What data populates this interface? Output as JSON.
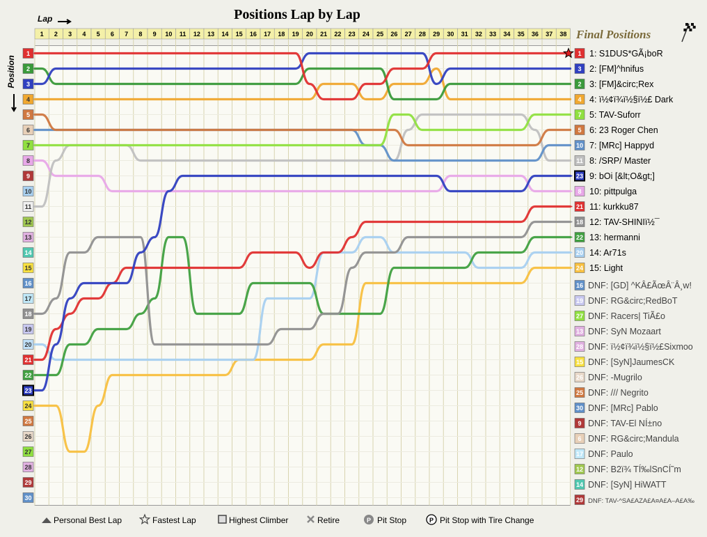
{
  "chart_data": {
    "type": "line",
    "title": "Positions Lap by Lap",
    "x_axis_label": "Lap",
    "y_axis_label": "Position",
    "laps": [
      1,
      2,
      3,
      4,
      5,
      6,
      7,
      8,
      9,
      10,
      11,
      12,
      13,
      14,
      15,
      16,
      17,
      18,
      19,
      20,
      21,
      22,
      23,
      24,
      25,
      26,
      27,
      28,
      29,
      30,
      31,
      32,
      33,
      34,
      35,
      36,
      37,
      38
    ],
    "positions": [
      1,
      2,
      3,
      4,
      5,
      6,
      7,
      8,
      9,
      10,
      11,
      12,
      13,
      14,
      15,
      16,
      17,
      18,
      19,
      20,
      21,
      22,
      23,
      24,
      25,
      26,
      27,
      28,
      29,
      30
    ],
    "grid_colors": [
      "#e03030",
      "#3a9a3a",
      "#3040c0",
      "#f0a830",
      "#d07840",
      "#e8d0b8",
      "#90e040",
      "#e8a8e8",
      "#b03838",
      "#a8d0f0",
      "#f0f0f0",
      "#a0c850",
      "#e0b0e0",
      "#50c8b0",
      "#f8e040",
      "#6090c8",
      "#c0e8f8",
      "#909090",
      "#c8c8f0",
      "#c0e0f8",
      "#e03030",
      "#40a040",
      "#3040c0",
      "#f8e040",
      "#d07840",
      "#e8d8c8",
      "#90e040",
      "#e0b0e0",
      "#b03838",
      "#6090c8"
    ],
    "highlight_grid_position": 23,
    "final_positions_title": "Final Positions",
    "finishers": [
      {
        "pos": "1",
        "label": "1: S1DUS*GÃ¡boR",
        "num": "1",
        "color": "#e03030",
        "line_style": "none",
        "fastest_lap": true
      },
      {
        "pos": "2",
        "label": "2: [FM]^hnifus",
        "num": "3",
        "color": "#3040c0",
        "line_style": "none"
      },
      {
        "pos": "3",
        "label": "3: [FM]&circ;Rex",
        "num": "2",
        "color": "#3a9a3a",
        "line_style": "none"
      },
      {
        "pos": "4",
        "label": "4: ï½¢ï¾ï½§ï½£ Dark",
        "num": "4",
        "color": "#f0a830",
        "line_style": "none"
      },
      {
        "pos": "5",
        "label": "5: TAV-Suforr",
        "num": "7",
        "color": "#90e040",
        "line_style": "none"
      },
      {
        "pos": "6",
        "label": "6: 23 Roger Chen",
        "num": "5",
        "color": "#d07840",
        "line_style": "none"
      },
      {
        "pos": "7",
        "label": "7: [MRc] Happyd",
        "num": "10",
        "color": "#6090c8",
        "line_style": "none"
      },
      {
        "pos": "8",
        "label": "8: /SRP/ Master",
        "num": "11",
        "color": "#c0c0c0",
        "line_style": "none"
      },
      {
        "pos": "9",
        "label": "9: bOi [&lt;O&gt;]",
        "num": "23",
        "color": "#3040c0",
        "line_style": "dash",
        "highlight": true
      },
      {
        "pos": "10",
        "label": "10: pittpulga",
        "num": "8",
        "color": "#e8a8e8",
        "line_style": "dash"
      },
      {
        "pos": "11",
        "label": "11: kurkku87",
        "num": "21",
        "color": "#e03030",
        "line_style": "dash"
      },
      {
        "pos": "12",
        "label": "12: TAV-SHINIï½¯",
        "num": "18",
        "color": "#909090",
        "line_style": "dash"
      },
      {
        "pos": "13",
        "label": "13: hermanni",
        "num": "22",
        "color": "#40a040",
        "line_style": "dash"
      },
      {
        "pos": "14",
        "label": "14: Ar71s",
        "num": "20",
        "color": "#a8d0f0",
        "line_style": "dash"
      },
      {
        "pos": "15",
        "label": "15: Light",
        "num": "24",
        "color": "#f8c040",
        "line_style": "dash"
      }
    ],
    "dnf": [
      {
        "label": "DNF: [GD] ^KÂ£ÃœÂ¨Â¸w!",
        "num": "16",
        "color": "#6090c8"
      },
      {
        "label": "DNF: RG&circ;RedBoT",
        "num": "19",
        "color": "#c8c8f0"
      },
      {
        "label": "DNF: Racers| TiÃ£o",
        "num": "27",
        "color": "#90e040"
      },
      {
        "label": "DNF: SyN Mozaart",
        "num": "13",
        "color": "#e0b0e0"
      },
      {
        "label": "DNF: ï½¢ï¾ï½§ï½£Sixmoo",
        "num": "28",
        "color": "#e0b0e0"
      },
      {
        "label": "DNF: [SyN]JaumesCK",
        "num": "15",
        "color": "#f8e040"
      },
      {
        "label": "DNF: -Mugrilo",
        "num": "26",
        "color": "#e8d8c8"
      },
      {
        "label": "DNF: /// Negrito",
        "num": "25",
        "color": "#d07840"
      },
      {
        "label": "DNF: [MRc] Pablo",
        "num": "30",
        "color": "#6090c8"
      },
      {
        "label": "DNF: TAV-El NÍ±no",
        "num": "9",
        "color": "#b03838"
      },
      {
        "label": "DNF: RG&circ;Mandula",
        "num": "6",
        "color": "#e8d0b8"
      },
      {
        "label": "DNF: Paulo",
        "num": "17",
        "color": "#c0e8f8"
      },
      {
        "label": "DNF: B2ï¾ TÍ‰lSnCÍ˜m",
        "num": "12",
        "color": "#a0c850"
      },
      {
        "label": "DNF: [SyN] HiWATT",
        "num": "14",
        "color": "#50c8b0"
      },
      {
        "label": "DNF: TAV-^SA£AZA£A¤A£A–A£A‰",
        "num": "29",
        "color": "#b03838",
        "small": true
      }
    ],
    "series": [
      {
        "name": "1: S1DUS*GÃ¡boR",
        "color": "#e03030",
        "positions": [
          1,
          1,
          1,
          1,
          1,
          1,
          1,
          1,
          1,
          1,
          1,
          1,
          1,
          1,
          1,
          1,
          1,
          1,
          1,
          3,
          4,
          4,
          4,
          3,
          3,
          2,
          2,
          2,
          1,
          1,
          1,
          1,
          1,
          1,
          1,
          1,
          1,
          1
        ]
      },
      {
        "name": "2: [FM]^hnifus",
        "color": "#3040c0",
        "positions": [
          3,
          2,
          2,
          2,
          2,
          2,
          2,
          2,
          2,
          2,
          2,
          2,
          2,
          2,
          2,
          2,
          2,
          2,
          2,
          1,
          1,
          1,
          1,
          1,
          1,
          1,
          1,
          1,
          3,
          2,
          2,
          2,
          2,
          2,
          2,
          2,
          2,
          2
        ]
      },
      {
        "name": "3: [FM]&circ;Rex",
        "color": "#3a9a3a",
        "positions": [
          2,
          3,
          3,
          3,
          3,
          3,
          3,
          3,
          3,
          3,
          3,
          3,
          3,
          3,
          3,
          3,
          3,
          3,
          3,
          2,
          2,
          2,
          2,
          2,
          2,
          4,
          4,
          4,
          4,
          3,
          3,
          3,
          3,
          3,
          3,
          3,
          3,
          3
        ]
      },
      {
        "name": "4: ï½¢ï¾ï½§ï½£ Dark",
        "color": "#f0a830",
        "positions": [
          4,
          4,
          4,
          4,
          4,
          4,
          4,
          4,
          4,
          4,
          4,
          4,
          4,
          4,
          4,
          4,
          4,
          4,
          4,
          4,
          3,
          3,
          3,
          4,
          4,
          3,
          3,
          3,
          2,
          4,
          4,
          4,
          4,
          4,
          4,
          4,
          4,
          4
        ]
      },
      {
        "name": "5: TAV-Suforr",
        "color": "#90e040",
        "positions": [
          7,
          7,
          7,
          7,
          7,
          7,
          7,
          7,
          7,
          7,
          7,
          7,
          7,
          7,
          7,
          7,
          7,
          7,
          7,
          7,
          7,
          7,
          7,
          7,
          7,
          5,
          5,
          6,
          6,
          6,
          6,
          6,
          6,
          6,
          6,
          5,
          5,
          5
        ]
      },
      {
        "name": "6: 23 Roger Chen",
        "color": "#d07840",
        "positions": [
          5,
          6,
          6,
          6,
          6,
          6,
          6,
          6,
          6,
          6,
          6,
          6,
          6,
          6,
          6,
          6,
          6,
          6,
          6,
          6,
          6,
          6,
          6,
          6,
          6,
          6,
          7,
          7,
          7,
          7,
          7,
          7,
          7,
          7,
          7,
          7,
          6,
          6
        ]
      },
      {
        "name": "7: [MRc] Happyd",
        "color": "#6090c8",
        "positions": [
          6,
          6,
          6,
          6,
          6,
          6,
          6,
          6,
          6,
          6,
          6,
          6,
          6,
          6,
          6,
          6,
          6,
          6,
          6,
          6,
          6,
          6,
          6,
          7,
          7,
          8,
          8,
          8,
          8,
          8,
          8,
          8,
          8,
          8,
          8,
          8,
          7,
          7
        ]
      },
      {
        "name": "8: /SRP/ Master",
        "color": "#c0c0c0",
        "positions": [
          11,
          8,
          7,
          7,
          7,
          7,
          7,
          8,
          8,
          8,
          8,
          8,
          8,
          8,
          8,
          8,
          8,
          8,
          8,
          8,
          8,
          8,
          8,
          8,
          8,
          8,
          6,
          5,
          5,
          5,
          5,
          5,
          5,
          5,
          5,
          6,
          8,
          8
        ]
      },
      {
        "name": "9: bOi [&lt;O&gt;]",
        "color": "#3040c0",
        "positions": [
          23,
          20,
          17,
          16,
          16,
          16,
          16,
          14,
          13,
          10,
          9,
          9,
          9,
          9,
          9,
          9,
          9,
          9,
          9,
          9,
          9,
          9,
          9,
          9,
          9,
          9,
          9,
          9,
          9,
          10,
          10,
          10,
          10,
          10,
          10,
          9,
          9,
          9
        ]
      },
      {
        "name": "10: pittpulga",
        "color": "#e8a8e8",
        "positions": [
          8,
          9,
          9,
          9,
          9,
          10,
          10,
          10,
          10,
          10,
          10,
          10,
          10,
          10,
          10,
          10,
          10,
          10,
          10,
          10,
          10,
          10,
          10,
          10,
          10,
          10,
          10,
          10,
          10,
          9,
          9,
          9,
          9,
          9,
          9,
          10,
          10,
          10
        ]
      },
      {
        "name": "11: kurkku87",
        "color": "#e03030",
        "positions": [
          21,
          19,
          18,
          17,
          17,
          16,
          15,
          15,
          15,
          15,
          15,
          15,
          15,
          15,
          15,
          14,
          14,
          14,
          14,
          15,
          14,
          14,
          13,
          12,
          12,
          12,
          12,
          12,
          12,
          12,
          12,
          12,
          12,
          12,
          12,
          11,
          11,
          11
        ]
      },
      {
        "name": "12: TAV-SHINIï½¯",
        "color": "#909090",
        "positions": [
          18,
          17,
          14,
          14,
          13,
          13,
          13,
          13,
          20,
          20,
          20,
          20,
          20,
          20,
          20,
          20,
          20,
          19,
          19,
          19,
          18,
          18,
          15,
          14,
          14,
          14,
          13,
          13,
          13,
          13,
          13,
          13,
          13,
          13,
          13,
          12,
          12,
          12
        ]
      },
      {
        "name": "13: hermanni",
        "color": "#40a040",
        "positions": [
          22,
          22,
          20,
          20,
          19,
          19,
          19,
          18,
          17,
          13,
          13,
          18,
          18,
          18,
          18,
          16,
          16,
          16,
          16,
          16,
          18,
          18,
          18,
          18,
          18,
          15,
          15,
          15,
          15,
          15,
          15,
          14,
          14,
          14,
          14,
          13,
          13,
          13
        ]
      },
      {
        "name": "14: Ar71s",
        "color": "#a8d0f0",
        "positions": [
          20,
          21,
          21,
          21,
          21,
          21,
          21,
          21,
          21,
          21,
          21,
          21,
          21,
          21,
          21,
          21,
          17,
          17,
          17,
          17,
          14,
          14,
          14,
          13,
          13,
          14,
          14,
          14,
          14,
          14,
          14,
          15,
          15,
          15,
          15,
          14,
          14,
          14
        ]
      },
      {
        "name": "15: Light",
        "color": "#f8c040",
        "positions": [
          24,
          24,
          27,
          27,
          24,
          22,
          22,
          22,
          22,
          22,
          22,
          22,
          22,
          22,
          21,
          21,
          21,
          21,
          21,
          21,
          20,
          20,
          20,
          16,
          16,
          16,
          16,
          16,
          16,
          16,
          16,
          16,
          16,
          16,
          16,
          15,
          15,
          15
        ]
      }
    ]
  }
}
